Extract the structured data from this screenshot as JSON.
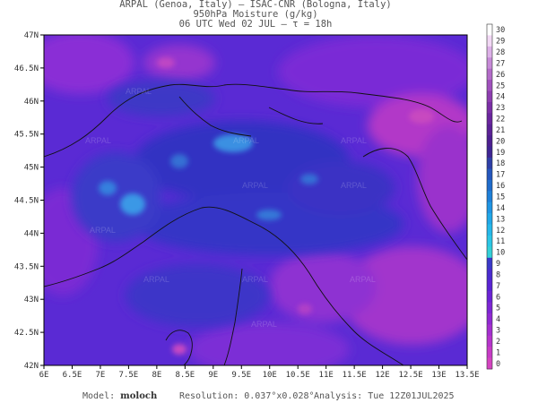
{
  "header": {
    "line1": "ARPAL (Genoa, Italy)  —  ISAC-CNR (Bologna, Italy)",
    "line2": "950hPa Moisture (g/kg)",
    "line3": "06 UTC Wed 02 JUL  —  τ = 18h"
  },
  "map": {
    "lat_labels": [
      "47N",
      "46.5N",
      "46N",
      "45.5N",
      "45N",
      "44.5N",
      "44N",
      "43.5N",
      "43N",
      "42.5N",
      "42N"
    ],
    "lon_labels": [
      "6E",
      "6.5E",
      "7E",
      "7.5E",
      "8E",
      "8.5E",
      "9E",
      "9.5E",
      "10E",
      "10.5E",
      "11E",
      "11.5E",
      "12E",
      "12.5E",
      "13E",
      "13.5E"
    ],
    "watermark": "ARPAL",
    "colors": {
      "low": "#2f2cc4",
      "mid": "#6a2ad8",
      "high": "#b030c8",
      "moist": "#3aa0ea",
      "coast": "#111111"
    }
  },
  "colorbar": {
    "labels": [
      "30",
      "29",
      "28",
      "27",
      "26",
      "25",
      "24",
      "23",
      "22",
      "21",
      "20",
      "19",
      "18",
      "17",
      "16",
      "15",
      "14",
      "13",
      "12",
      "11",
      "10",
      "9",
      "8",
      "7",
      "6",
      "5",
      "4",
      "3",
      "2",
      "1",
      "0"
    ],
    "colors": [
      "#ffffff",
      "#f2d8f5",
      "#ddb0e8",
      "#c78ad8",
      "#b36bc9",
      "#a050bd",
      "#8d3db0",
      "#7b2ea6",
      "#6a259e",
      "#5b2196",
      "#4d1f91",
      "#3f2594",
      "#2e3fa8",
      "#2456bd",
      "#1f6ccc",
      "#1d80d9",
      "#1e95e4",
      "#20a8e8",
      "#25b8ea",
      "#2bc6e6",
      "#33d0d8",
      "#3a39c9",
      "#4a2bd0",
      "#5a24d4",
      "#6b23d6",
      "#7d26d5",
      "#9029d3",
      "#a42fd0",
      "#b634cc",
      "#c73bc6",
      "#d444c0"
    ]
  },
  "footer": {
    "model_label": "Model:",
    "model_value": "moloch",
    "resolution": "Resolution: 0.037°x0.028°",
    "analysis": "Analysis: Tue 12Z01JUL2025"
  }
}
